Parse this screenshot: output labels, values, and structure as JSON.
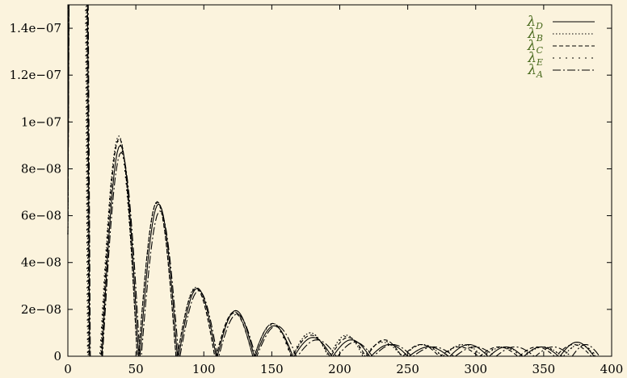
{
  "chart_data": {
    "type": "line",
    "title": "",
    "xlabel": "",
    "ylabel": "",
    "xlim": [
      0,
      400
    ],
    "ylim": [
      0,
      1.5e-07
    ],
    "grid": false,
    "legend_position": "top-right",
    "x_ticks": [
      {
        "value": 0,
        "label": "0"
      },
      {
        "value": 50,
        "label": "50"
      },
      {
        "value": 100,
        "label": "100"
      },
      {
        "value": 150,
        "label": "150"
      },
      {
        "value": 200,
        "label": "200"
      },
      {
        "value": 250,
        "label": "250"
      },
      {
        "value": 300,
        "label": "300"
      },
      {
        "value": 350,
        "label": "350"
      },
      {
        "value": 400,
        "label": "400"
      }
    ],
    "y_ticks": [
      {
        "value": 0,
        "label": "0"
      },
      {
        "value": 2e-08,
        "label": "2e−08"
      },
      {
        "value": 4e-08,
        "label": "4e−08"
      },
      {
        "value": 6e-08,
        "label": "6e−08"
      },
      {
        "value": 8e-08,
        "label": "8e−08"
      },
      {
        "value": 1e-07,
        "label": "1e−07"
      },
      {
        "value": 1.2e-07,
        "label": "1.2e−07"
      },
      {
        "value": 1.4e-07,
        "label": "1.4e−07"
      }
    ],
    "series": [
      {
        "name": "D",
        "dash": "",
        "peaks": [
          [
            39,
            9e-08
          ],
          [
            67,
            6.5e-08
          ],
          [
            96,
            2.9e-08
          ],
          [
            124,
            1.95e-08
          ],
          [
            152,
            1.3e-08
          ],
          [
            181,
            8e-09
          ],
          [
            209,
            7e-09
          ],
          [
            237,
            5e-09
          ],
          [
            265,
            4e-09
          ],
          [
            297,
            5e-09
          ],
          [
            323,
            4e-09
          ],
          [
            348,
            4e-09
          ],
          [
            376,
            6e-09
          ]
        ]
      },
      {
        "name": "B",
        "dash": "1.5,2.5",
        "peaks": [
          [
            38,
            9.4e-08
          ],
          [
            66,
            6.6e-08
          ],
          [
            95,
            2.95e-08
          ],
          [
            123,
            1.9e-08
          ],
          [
            151,
            1.4e-08
          ],
          [
            180,
            1e-08
          ],
          [
            205,
            9e-09
          ],
          [
            231,
            6e-09
          ],
          [
            262,
            5e-09
          ],
          [
            291,
            5e-09
          ],
          [
            321,
            4e-09
          ],
          [
            351,
            4e-09
          ],
          [
            378,
            5e-09
          ]
        ]
      },
      {
        "name": "C",
        "dash": "5,3",
        "peaks": [
          [
            38,
            9.3e-08
          ],
          [
            66,
            6.6e-08
          ],
          [
            95,
            2.9e-08
          ],
          [
            123,
            1.85e-08
          ],
          [
            151,
            1.4e-08
          ],
          [
            180,
            9e-09
          ],
          [
            207,
            8e-09
          ],
          [
            233,
            7e-09
          ],
          [
            260,
            5e-09
          ],
          [
            288,
            4e-09
          ],
          [
            318,
            4e-09
          ],
          [
            346,
            4e-09
          ],
          [
            372,
            5e-09
          ]
        ]
      },
      {
        "name": "E",
        "dash": "2,6",
        "peaks": [
          [
            38,
            9.2e-08
          ],
          [
            66,
            6.55e-08
          ],
          [
            95,
            2.9e-08
          ],
          [
            123,
            1.9e-08
          ],
          [
            151,
            1.35e-08
          ],
          [
            179,
            1e-08
          ],
          [
            206,
            8.5e-09
          ],
          [
            232,
            6.5e-09
          ],
          [
            262,
            5e-09
          ],
          [
            290,
            5e-09
          ],
          [
            320,
            4e-09
          ],
          [
            349,
            4e-09
          ],
          [
            380,
            5e-09
          ]
        ]
      },
      {
        "name": "A",
        "dash": "10,3,2,3",
        "peaks": [
          [
            40,
            8.7e-08
          ],
          [
            68,
            6.2e-08
          ],
          [
            97,
            2.8e-08
          ],
          [
            125,
            1.8e-08
          ],
          [
            153,
            1.3e-08
          ],
          [
            185,
            7e-09
          ],
          [
            212,
            6e-09
          ],
          [
            238,
            5e-09
          ],
          [
            270,
            4e-09
          ],
          [
            300,
            4e-09
          ],
          [
            330,
            4e-09
          ],
          [
            358,
            4e-09
          ],
          [
            384,
            5e-09
          ]
        ]
      }
    ]
  }
}
